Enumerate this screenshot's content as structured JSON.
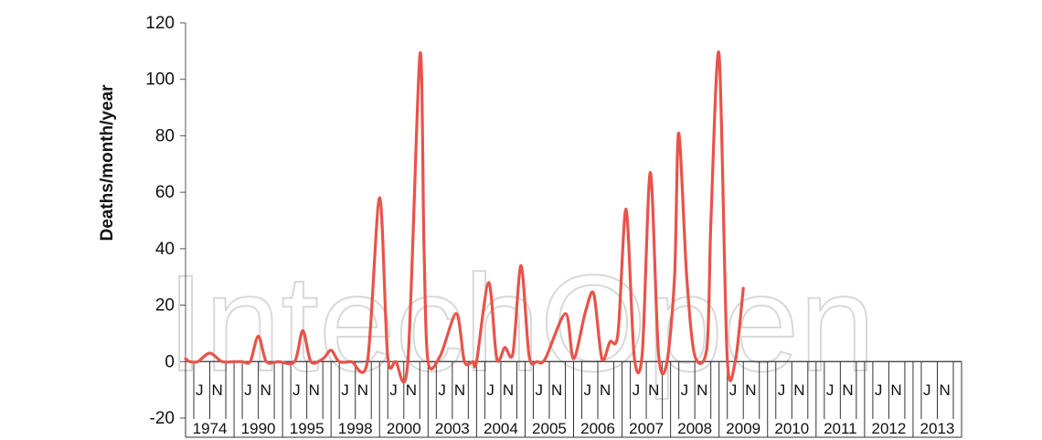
{
  "chart_data": {
    "type": "line",
    "ylabel": "Deaths/month/year",
    "xlabel": "",
    "title": "",
    "ylim": [
      -20,
      120
    ],
    "yticks": [
      -20,
      0,
      20,
      40,
      60,
      80,
      100,
      120
    ],
    "grid": false,
    "legend": "none",
    "years": [
      "1974",
      "1990",
      "1995",
      "1998",
      "2000",
      "2003",
      "2004",
      "2005",
      "2006",
      "2007",
      "2008",
      "2009",
      "2010",
      "2011",
      "2012",
      "2013"
    ],
    "month_marks": [
      "J",
      "N"
    ],
    "series": [
      {
        "color": "#e8534a",
        "x_unit": "month index (12 per year, starting January 1974)",
        "points": [
          [
            0,
            1
          ],
          [
            1,
            0
          ],
          [
            3,
            0
          ],
          [
            6,
            3
          ],
          [
            9,
            0
          ],
          [
            12,
            0
          ],
          [
            14,
            0
          ],
          [
            16,
            0
          ],
          [
            18,
            9
          ],
          [
            20,
            0
          ],
          [
            23,
            0
          ],
          [
            27,
            0
          ],
          [
            29,
            11
          ],
          [
            31,
            0
          ],
          [
            34,
            1
          ],
          [
            36,
            4
          ],
          [
            38,
            0
          ],
          [
            41,
            0
          ],
          [
            45,
            0
          ],
          [
            48,
            58
          ],
          [
            50,
            2
          ],
          [
            52,
            0
          ],
          [
            55,
            0
          ],
          [
            58,
            109
          ],
          [
            59,
            40
          ],
          [
            60,
            0
          ],
          [
            63,
            2
          ],
          [
            67,
            17
          ],
          [
            69,
            0
          ],
          [
            71,
            0
          ],
          [
            72,
            0
          ],
          [
            75,
            28
          ],
          [
            77,
            1
          ],
          [
            79,
            5
          ],
          [
            81,
            3
          ],
          [
            83,
            34
          ],
          [
            85,
            2
          ],
          [
            87,
            0
          ],
          [
            89,
            1
          ],
          [
            94,
            17
          ],
          [
            96,
            1
          ],
          [
            99,
            18
          ],
          [
            101,
            24
          ],
          [
            103,
            1
          ],
          [
            105,
            7
          ],
          [
            107,
            10
          ],
          [
            109,
            54
          ],
          [
            111,
            2
          ],
          [
            113,
            3
          ],
          [
            115,
            67
          ],
          [
            117,
            3
          ],
          [
            119,
            -1
          ],
          [
            121,
            30
          ],
          [
            122,
            81
          ],
          [
            124,
            30
          ],
          [
            126,
            2
          ],
          [
            129,
            5
          ],
          [
            130,
            50
          ],
          [
            132,
            109
          ],
          [
            134,
            2
          ],
          [
            136,
            0
          ],
          [
            138,
            26
          ]
        ]
      }
    ]
  },
  "watermark": {
    "text": "IntechOpen"
  }
}
